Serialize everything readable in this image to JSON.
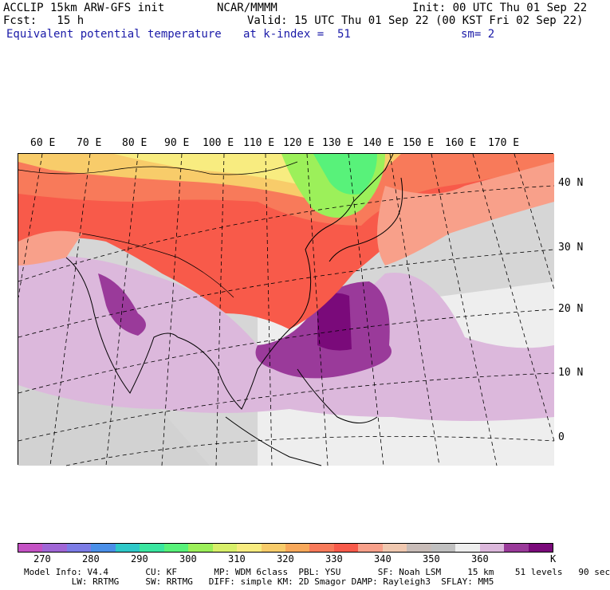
{
  "header": {
    "title": "ACCLIP 15km ARW-GFS init",
    "org": "NCAR/MMMM",
    "init": "Init: 00 UTC Thu 01 Sep 22",
    "fcst": "Fcst:   15 h",
    "valid": "Valid: 15 UTC Thu 01 Sep 22 (00 KST Fri 02 Sep 22)",
    "field": "Equivalent potential temperature",
    "level": "at k-index =  51",
    "smooth": "sm= 2"
  },
  "map": {
    "lon_labels": [
      "60 E",
      "70 E",
      "80 E",
      "90 E",
      "100 E",
      "110 E",
      "120 E",
      "130 E",
      "140 E",
      "150 E",
      "160 E",
      "170 E"
    ],
    "lat_labels": [
      "40 N",
      "30 N",
      "20 N",
      "10 N",
      "0"
    ]
  },
  "colorbar": {
    "colors": [
      "#c452c4",
      "#a066d6",
      "#7c7ce6",
      "#4a8fe8",
      "#2ec8c8",
      "#3ae6a0",
      "#58f27a",
      "#9cf05a",
      "#d8f06a",
      "#f8ec80",
      "#f8cc6a",
      "#f8a85a",
      "#f87a5a",
      "#f85a4a",
      "#f8a08a",
      "#f0c8b0",
      "#c8bcb8",
      "#c0c0c0",
      "#eeeeee",
      "#dcb8dc",
      "#9a3a9a",
      "#7a0a7a"
    ],
    "labels": [
      "270",
      "280",
      "290",
      "300",
      "310",
      "320",
      "330",
      "340",
      "350",
      "360"
    ],
    "unit": "K"
  },
  "footer": {
    "line1": "Model Info: V4.4       CU: KF       MP: WDM 6class  PBL: YSU       SF: Noah LSM     15 km    51 levels   90 sec",
    "line2": "         LW: RRTMG     SW: RRTMG   DIFF: simple KM: 2D Smagor DAMP: Rayleigh3  SFLAY: MM5"
  }
}
